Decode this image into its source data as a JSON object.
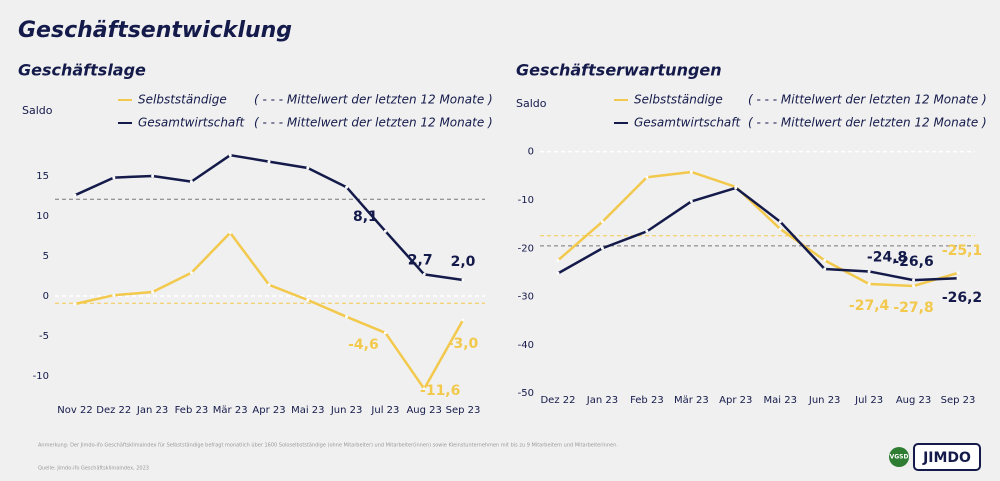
{
  "title": "Geschäftsentwicklung",
  "note": "Anmerkung: Der Jimdo-ifo Geschäftsklimaindex für Selbstständige befragt monatlich über 1600 Soloselbstständige (ohne Mitarbeiter) und Mitarbeiter(innen) sowie Kleinstunternehmen mit bis zu 9 Mitarbeitern und Mitarbeiterinnen.",
  "source": "Quelle: Jimdo-ifo Geschäftsklimaindex, 2023",
  "logos": [
    "VGSD",
    "JIMDO"
  ],
  "chart_data": [
    {
      "type": "line",
      "title": "Geschäftslage",
      "y_label": "Saldo",
      "categories": [
        "Nov 22",
        "Dez 22",
        "Jan 23",
        "Feb 23",
        "Mär 23",
        "Apr 23",
        "Mai 23",
        "Jun 23",
        "Jul 23",
        "Aug 23",
        "Sep 23"
      ],
      "ylim": [
        -14,
        18
      ],
      "yticks": [
        -10,
        -5,
        0,
        5,
        10,
        15
      ],
      "series": [
        {
          "name": "Selbstständige",
          "color": "#f2c94c",
          "mean": -0.9,
          "mean_label": "( - - - Mittelwert der letzten 12 Monate )",
          "values": [
            -1.0,
            0.1,
            0.5,
            2.9,
            7.9,
            1.4,
            -0.5,
            -2.6,
            -4.6,
            -11.6,
            -3.0
          ],
          "value_labels": [
            null,
            null,
            null,
            null,
            null,
            null,
            null,
            null,
            "-4,6",
            "-11,6",
            "-3,0"
          ]
        },
        {
          "name": "Gesamtwirtschaft",
          "color": "#141a4a",
          "mean": 12.1,
          "mean_label": "( - - - Mittelwert der letzten 12 Monate )",
          "values": [
            12.6,
            14.8,
            15.0,
            14.3,
            17.6,
            16.8,
            16.0,
            13.6,
            8.1,
            2.7,
            2.0
          ],
          "value_labels": [
            null,
            null,
            null,
            null,
            null,
            null,
            null,
            null,
            "8,1",
            "2,7",
            "2,0"
          ]
        }
      ]
    },
    {
      "type": "line",
      "title": "Geschäftserwartungen",
      "y_label": "Saldo",
      "categories": [
        "Dez 22",
        "Jan 23",
        "Feb 23",
        "Mär 23",
        "Apr 23",
        "Mai 23",
        "Jun 23",
        "Jul 23",
        "Aug 23",
        "Sep 23"
      ],
      "ylim": [
        -51,
        2
      ],
      "yticks": [
        -50,
        -40,
        -30,
        -20,
        -10,
        0
      ],
      "series": [
        {
          "name": "Selbstständige",
          "color": "#f2c94c",
          "mean": -17.4,
          "mean_label": "( - - - Mittelwert der letzten 12 Monate )",
          "values": [
            -22.5,
            -14.5,
            -5.3,
            -4.2,
            -7.3,
            -16.0,
            -22.5,
            -27.4,
            -27.8,
            -25.1
          ],
          "value_labels": [
            null,
            null,
            null,
            null,
            null,
            null,
            null,
            "-27,4",
            "-27,8",
            "-25,1"
          ]
        },
        {
          "name": "Gesamtwirtschaft",
          "color": "#141a4a",
          "mean": -19.5,
          "mean_label": "( - - - Mittelwert der letzten 12 Monate )",
          "values": [
            -25.2,
            -20.0,
            -16.5,
            -10.3,
            -7.5,
            -14.5,
            -24.3,
            -24.8,
            -26.6,
            -26.2
          ],
          "value_labels": [
            null,
            null,
            null,
            null,
            null,
            null,
            null,
            "-24,8",
            "-26,6",
            "-26,2"
          ]
        }
      ]
    }
  ]
}
